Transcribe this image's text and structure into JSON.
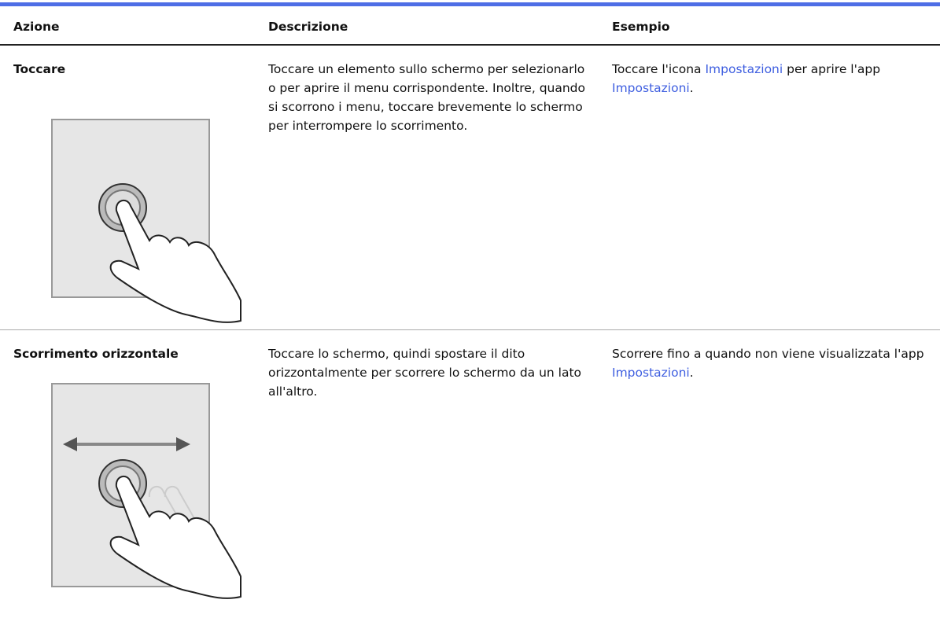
{
  "table": {
    "headers": [
      "Azione",
      "Descrizione",
      "Esempio"
    ],
    "rows": [
      {
        "action": "Toccare",
        "description": "Toccare un elemento sullo schermo per selezionarlo o per aprire il menu corrispondente. Inoltre, quando si scorrono i menu, toccare brevemente lo schermo per interrompere lo scorrimento.",
        "example": [
          {
            "text": "Toccare l'icona "
          },
          {
            "link": "Impostazioni"
          },
          {
            "text": " per aprire l'app "
          },
          {
            "link": "Impostazioni"
          },
          {
            "text": "."
          }
        ]
      },
      {
        "action": "Scorrimento orizzontale",
        "description": "Toccare lo schermo, quindi spostare il dito orizzontalmente per scorrere lo schermo da un lato all'altro.",
        "example": [
          {
            "text": "Scorrere fino a quando non viene visualizzata l'app "
          },
          {
            "link": "Impostazioni"
          },
          {
            "text": "."
          }
        ]
      }
    ]
  }
}
